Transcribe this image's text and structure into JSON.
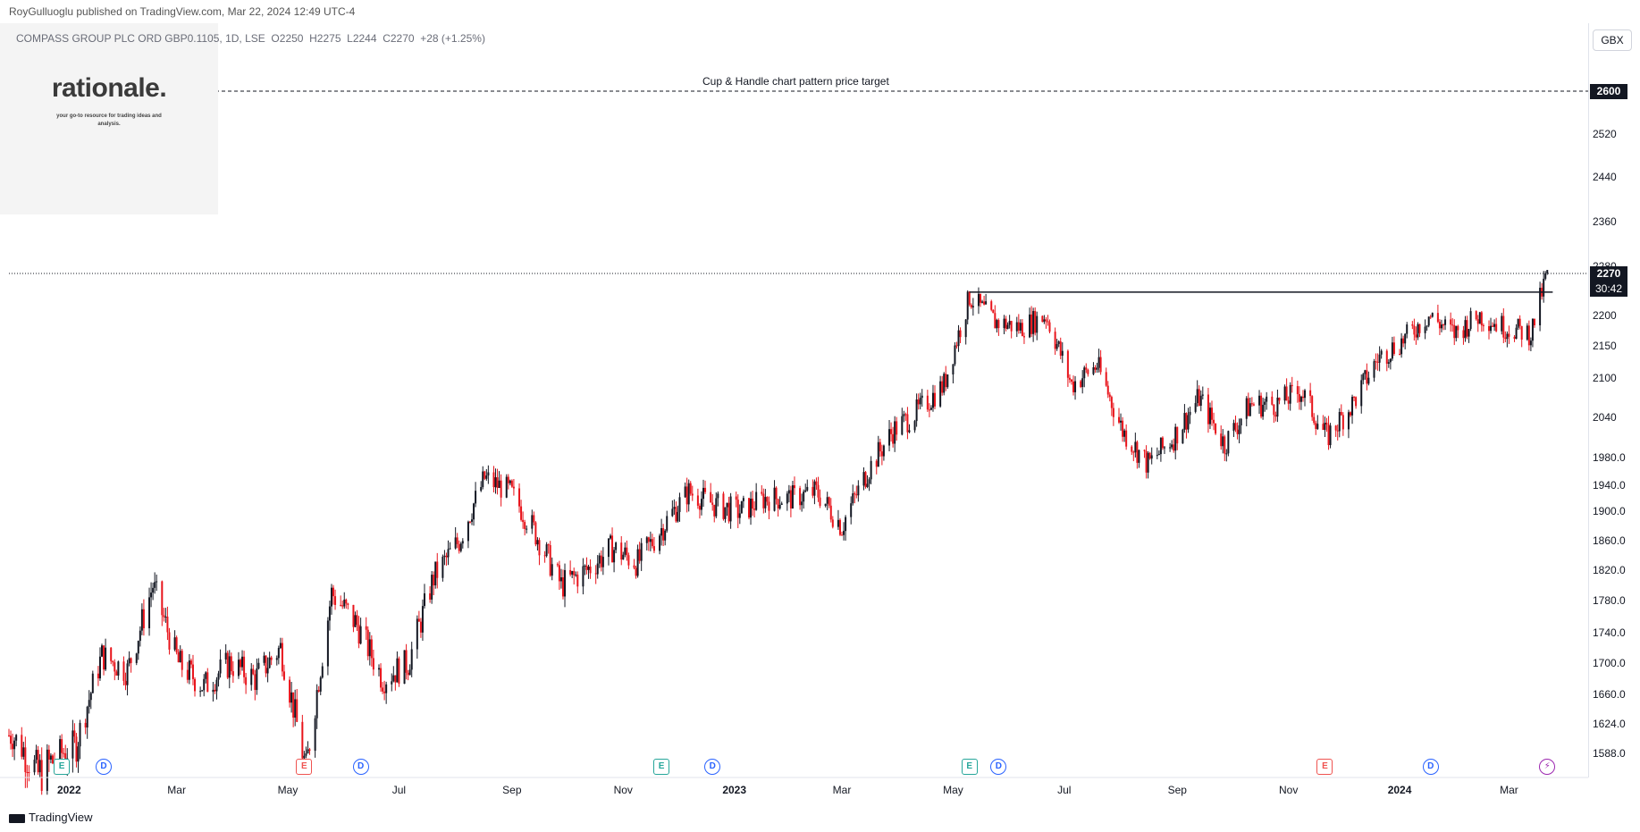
{
  "header": {
    "published": "RoyGulluoglu published on TradingView.com, Mar 22, 2024 12:49 UTC-4",
    "symbol_line": "COMPASS GROUP PLC ORD GBP0.1105, 1D, LSE  O2250  H2275  L2244  C2270  +28 (+1.25%)"
  },
  "logo": {
    "title": "rationale.",
    "subtitle": "your go-to resource for trading ideas and analysis."
  },
  "currency": "GBX",
  "annotation": "Cup & Handle chart pattern price target",
  "target_label": "2600",
  "last_price_label": "2270",
  "countdown": "30:42",
  "footer": "TradingView",
  "colors": {
    "up": "#131722",
    "down": "#e8141b",
    "event_earnings": "#26a69a",
    "event_dividend": "#2962ff",
    "event_earnings_neg": "#ef5350",
    "event_split": "#9c27b0"
  },
  "events": [
    {
      "label": "E",
      "type": "earnings",
      "date": "2021-12-28"
    },
    {
      "label": "D",
      "type": "dividend",
      "date": "2022-01-20"
    },
    {
      "label": "E",
      "type": "earnings_neg",
      "date": "2022-05-10"
    },
    {
      "label": "D",
      "type": "dividend",
      "date": "2022-06-10"
    },
    {
      "label": "E",
      "type": "earnings",
      "date": "2022-11-22"
    },
    {
      "label": "D",
      "type": "dividend",
      "date": "2022-12-20"
    },
    {
      "label": "E",
      "type": "earnings",
      "date": "2023-05-10"
    },
    {
      "label": "D",
      "type": "dividend",
      "date": "2023-05-26"
    },
    {
      "label": "E",
      "type": "earnings_neg",
      "date": "2023-11-21"
    },
    {
      "label": "D",
      "type": "dividend",
      "date": "2024-01-18"
    },
    {
      "label": "⚡",
      "type": "split",
      "date": "2024-03-22"
    }
  ],
  "chart_data": {
    "type": "candlestick",
    "title": "",
    "series_name": "",
    "ylim": [
      1540,
      2700
    ],
    "y_ticks": [
      1588,
      1624,
      1660,
      1700,
      1740,
      1780,
      1820,
      1860,
      1900,
      1940,
      1980,
      2040,
      2100,
      2150,
      2200,
      2280,
      2360,
      2440,
      2520
    ],
    "x_range": [
      "2021-11-29",
      "2024-04-10"
    ],
    "x_ticks": [
      {
        "label": "2022",
        "date": "2022-01-01"
      },
      {
        "label": "Mar",
        "date": "2022-03-01"
      },
      {
        "label": "May",
        "date": "2022-05-01"
      },
      {
        "label": "Jul",
        "date": "2022-07-01"
      },
      {
        "label": "Sep",
        "date": "2022-09-01"
      },
      {
        "label": "Nov",
        "date": "2022-11-01"
      },
      {
        "label": "2023",
        "date": "2023-01-01"
      },
      {
        "label": "Mar",
        "date": "2023-03-01"
      },
      {
        "label": "May",
        "date": "2023-05-01"
      },
      {
        "label": "Jul",
        "date": "2023-07-01"
      },
      {
        "label": "Sep",
        "date": "2023-09-01"
      },
      {
        "label": "Nov",
        "date": "2023-11-01"
      },
      {
        "label": "2024",
        "date": "2024-01-01"
      },
      {
        "label": "Mar",
        "date": "2024-03-01"
      }
    ],
    "target_line": 2600,
    "resistance_line": {
      "value": 2238,
      "from": "2023-05-10",
      "to": "2024-03-25"
    },
    "last_price": 2270,
    "weekly_closes": [
      [
        "2021-12-01",
        1610
      ],
      [
        "2021-12-15",
        1570
      ],
      [
        "2022-01-05",
        1600
      ],
      [
        "2022-01-19",
        1710
      ],
      [
        "2022-02-02",
        1690
      ],
      [
        "2022-02-16",
        1800
      ],
      [
        "2022-03-02",
        1700
      ],
      [
        "2022-03-16",
        1670
      ],
      [
        "2022-03-30",
        1700
      ],
      [
        "2022-04-13",
        1680
      ],
      [
        "2022-04-27",
        1720
      ],
      [
        "2022-05-11",
        1570
      ],
      [
        "2022-05-25",
        1790
      ],
      [
        "2022-06-08",
        1750
      ],
      [
        "2022-06-22",
        1680
      ],
      [
        "2022-07-06",
        1700
      ],
      [
        "2022-07-20",
        1810
      ],
      [
        "2022-08-03",
        1860
      ],
      [
        "2022-08-17",
        1950
      ],
      [
        "2022-08-31",
        1930
      ],
      [
        "2022-09-14",
        1870
      ],
      [
        "2022-09-28",
        1800
      ],
      [
        "2022-10-12",
        1820
      ],
      [
        "2022-10-26",
        1850
      ],
      [
        "2022-11-09",
        1830
      ],
      [
        "2022-11-23",
        1880
      ],
      [
        "2022-12-07",
        1930
      ],
      [
        "2022-12-21",
        1910
      ],
      [
        "2023-01-04",
        1900
      ],
      [
        "2023-01-18",
        1920
      ],
      [
        "2023-02-01",
        1920
      ],
      [
        "2023-02-15",
        1930
      ],
      [
        "2023-03-01",
        1880
      ],
      [
        "2023-03-15",
        1960
      ],
      [
        "2023-03-29",
        2020
      ],
      [
        "2023-04-12",
        2050
      ],
      [
        "2023-04-26",
        2090
      ],
      [
        "2023-05-10",
        2230
      ],
      [
        "2023-05-24",
        2190
      ],
      [
        "2023-06-07",
        2180
      ],
      [
        "2023-06-21",
        2200
      ],
      [
        "2023-07-05",
        2090
      ],
      [
        "2023-07-19",
        2120
      ],
      [
        "2023-08-02",
        2020
      ],
      [
        "2023-08-16",
        1970
      ],
      [
        "2023-08-30",
        2010
      ],
      [
        "2023-09-13",
        2070
      ],
      [
        "2023-09-27",
        2000
      ],
      [
        "2023-10-11",
        2060
      ],
      [
        "2023-10-25",
        2060
      ],
      [
        "2023-11-08",
        2080
      ],
      [
        "2023-11-22",
        2010
      ],
      [
        "2023-12-06",
        2060
      ],
      [
        "2023-12-20",
        2130
      ],
      [
        "2024-01-03",
        2160
      ],
      [
        "2024-01-17",
        2200
      ],
      [
        "2024-01-31",
        2170
      ],
      [
        "2024-02-14",
        2200
      ],
      [
        "2024-02-28",
        2180
      ],
      [
        "2024-03-13",
        2170
      ],
      [
        "2024-03-22",
        2270
      ]
    ]
  }
}
